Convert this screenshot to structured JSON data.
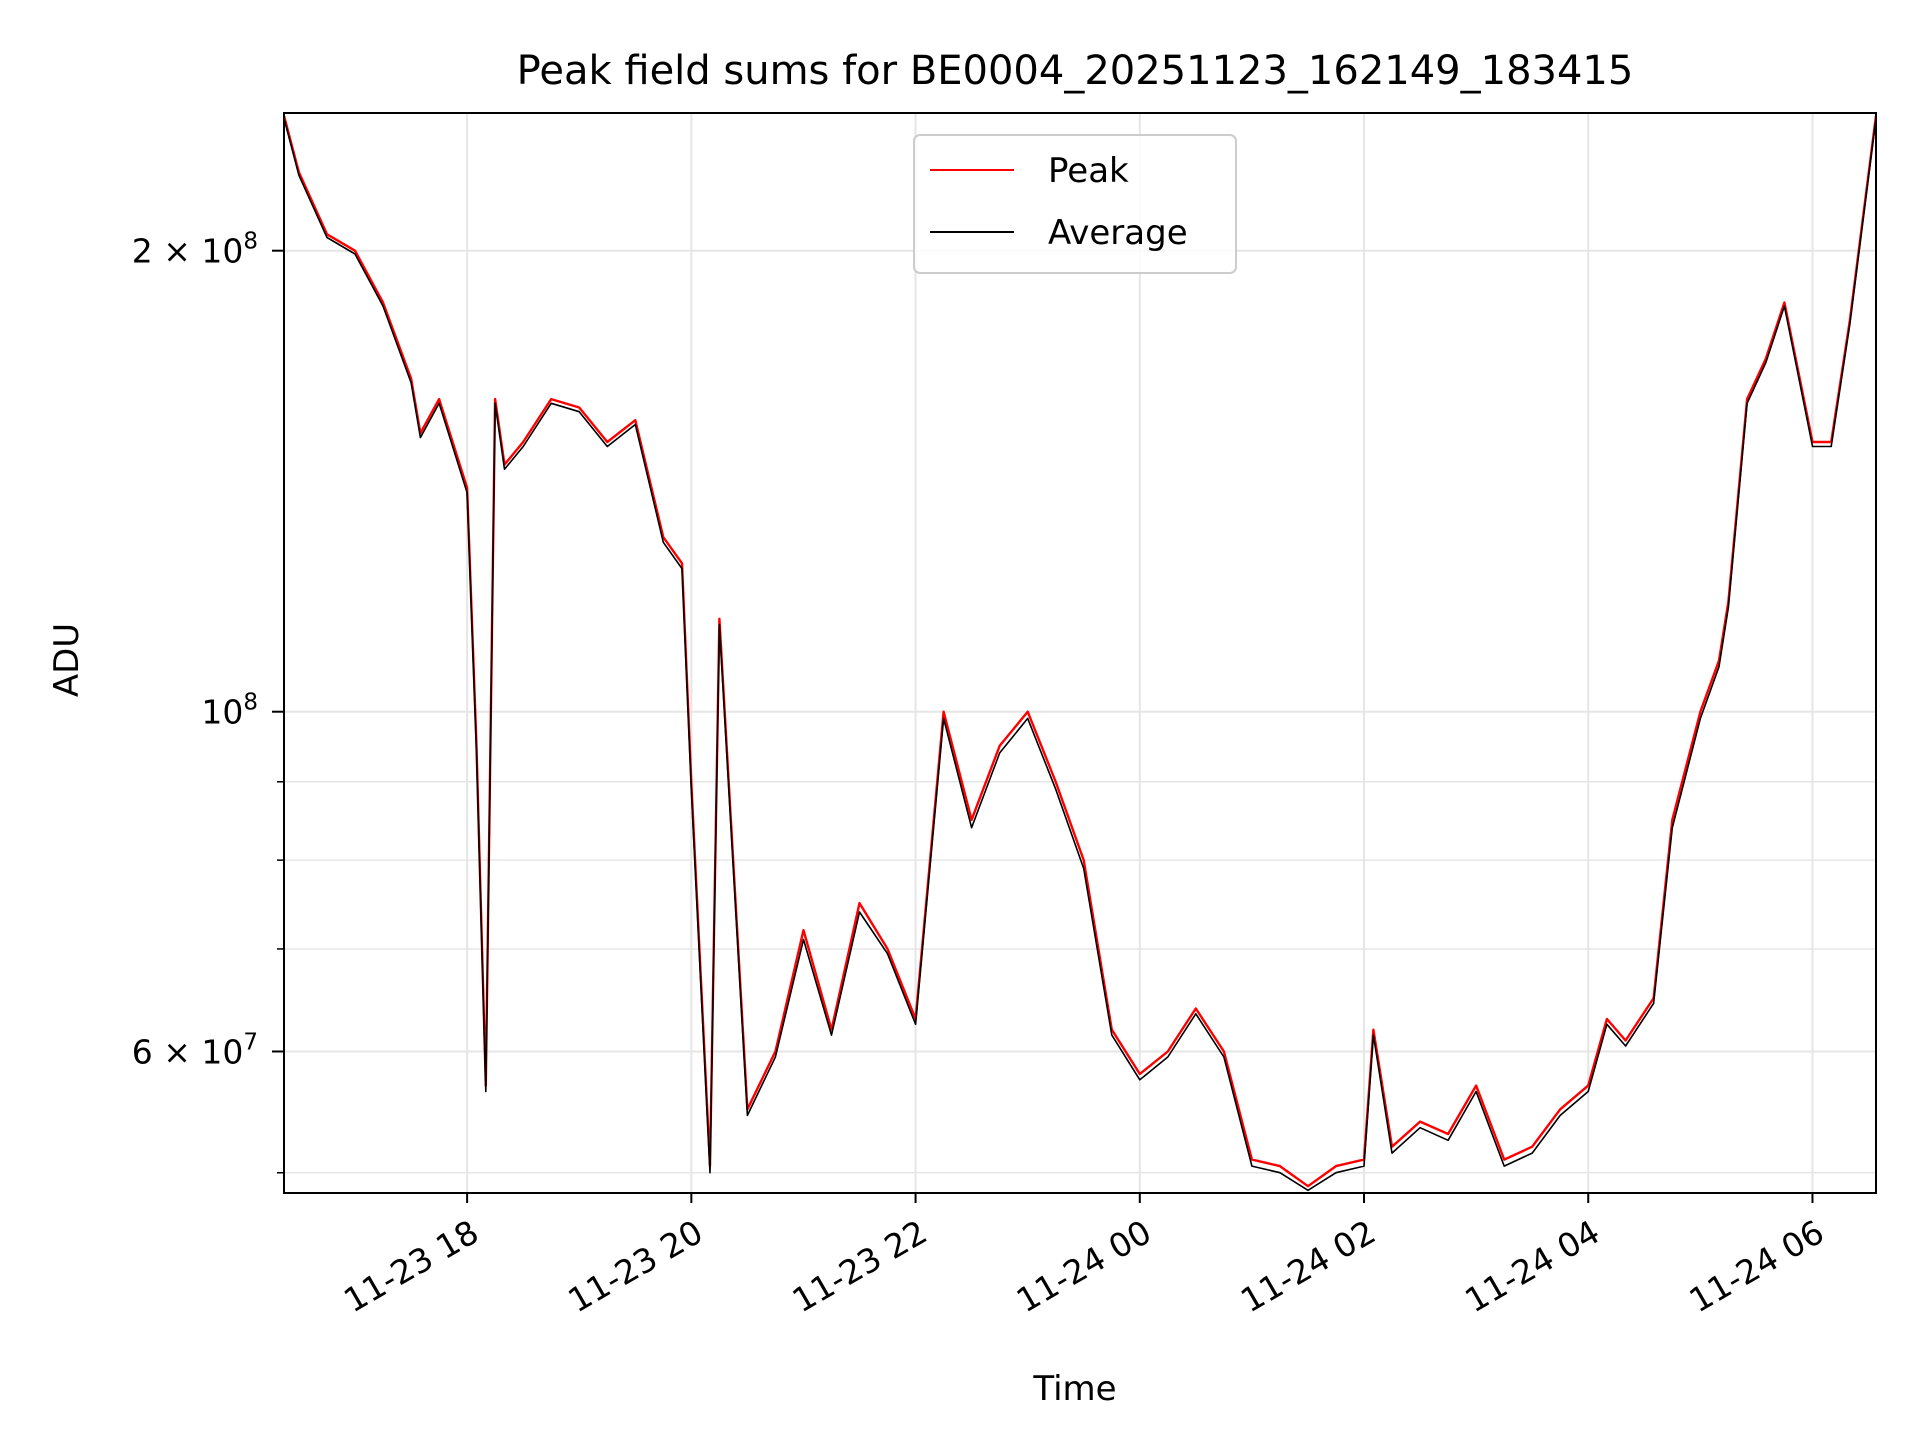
{
  "chart_data": {
    "type": "line",
    "title": "Peak field sums for BE0004_20251123_162149_183415",
    "xlabel": "Time",
    "ylabel": "ADU",
    "yscale": "log",
    "xlim": [
      "2025-11-23 16:22",
      "2025-11-24 06:34"
    ],
    "ylim": [
      48500000,
      246000000
    ],
    "grid": true,
    "legend_position": "top-center",
    "x_ticks": [
      {
        "t": "2025-11-23 18:00",
        "label": "11-23 18"
      },
      {
        "t": "2025-11-23 20:00",
        "label": "11-23 20"
      },
      {
        "t": "2025-11-23 22:00",
        "label": "11-23 22"
      },
      {
        "t": "2025-11-24 00:00",
        "label": "11-24 00"
      },
      {
        "t": "2025-11-24 02:00",
        "label": "11-24 02"
      },
      {
        "t": "2025-11-24 04:00",
        "label": "11-24 04"
      },
      {
        "t": "2025-11-24 06:00",
        "label": "11-24 06"
      }
    ],
    "y_major_ticks": [
      {
        "value": 60000000,
        "mantissa": "6 × 10",
        "exponent": "7"
      },
      {
        "value": 100000000,
        "mantissa": "10",
        "exponent": "8"
      },
      {
        "value": 200000000,
        "mantissa": "2 × 10",
        "exponent": "8"
      }
    ],
    "y_minor_ticks": [
      50000000,
      70000000,
      80000000,
      90000000
    ],
    "series": [
      {
        "name": "Peak",
        "color": "#ff0000",
        "x": [
          "2025-11-23 16:22",
          "2025-11-23 16:30",
          "2025-11-23 16:45",
          "2025-11-23 17:00",
          "2025-11-23 17:15",
          "2025-11-23 17:30",
          "2025-11-23 17:35",
          "2025-11-23 17:45",
          "2025-11-23 18:00",
          "2025-11-23 18:05",
          "2025-11-23 18:10",
          "2025-11-23 18:15",
          "2025-11-23 18:20",
          "2025-11-23 18:30",
          "2025-11-23 18:45",
          "2025-11-23 19:00",
          "2025-11-23 19:15",
          "2025-11-23 19:30",
          "2025-11-23 19:45",
          "2025-11-23 19:55",
          "2025-11-23 20:00",
          "2025-11-23 20:10",
          "2025-11-23 20:15",
          "2025-11-23 20:30",
          "2025-11-23 20:45",
          "2025-11-23 21:00",
          "2025-11-23 21:15",
          "2025-11-23 21:30",
          "2025-11-23 21:45",
          "2025-11-23 22:00",
          "2025-11-23 22:15",
          "2025-11-23 22:30",
          "2025-11-23 22:45",
          "2025-11-23 23:00",
          "2025-11-23 23:15",
          "2025-11-23 23:30",
          "2025-11-23 23:45",
          "2025-11-24 00:00",
          "2025-11-24 00:15",
          "2025-11-24 00:30",
          "2025-11-24 00:45",
          "2025-11-24 01:00",
          "2025-11-24 01:15",
          "2025-11-24 01:30",
          "2025-11-24 01:45",
          "2025-11-24 02:00",
          "2025-11-24 02:05",
          "2025-11-24 02:15",
          "2025-11-24 02:30",
          "2025-11-24 02:45",
          "2025-11-24 03:00",
          "2025-11-24 03:15",
          "2025-11-24 03:30",
          "2025-11-24 03:45",
          "2025-11-24 04:00",
          "2025-11-24 04:10",
          "2025-11-24 04:20",
          "2025-11-24 04:35",
          "2025-11-24 04:45",
          "2025-11-24 05:00",
          "2025-11-24 05:10",
          "2025-11-24 05:15",
          "2025-11-24 05:25",
          "2025-11-24 05:35",
          "2025-11-24 05:45",
          "2025-11-24 06:00",
          "2025-11-24 06:10",
          "2025-11-24 06:20",
          "2025-11-24 06:34"
        ],
        "y": [
          245000000,
          225000000,
          205000000,
          200000000,
          185000000,
          165000000,
          152000000,
          160000000,
          140000000,
          95000000,
          57000000,
          160000000,
          145000000,
          150000000,
          160000000,
          158000000,
          150000000,
          155000000,
          130000000,
          125000000,
          90000000,
          50500000,
          115000000,
          55000000,
          60000000,
          72000000,
          62000000,
          75000000,
          70000000,
          63000000,
          100000000,
          85000000,
          95000000,
          100000000,
          90000000,
          80000000,
          62000000,
          58000000,
          60000000,
          64000000,
          60000000,
          51000000,
          50500000,
          49000000,
          50500000,
          51000000,
          62000000,
          52000000,
          54000000,
          53000000,
          57000000,
          51000000,
          52000000,
          55000000,
          57000000,
          63000000,
          61000000,
          65000000,
          85000000,
          100000000,
          108000000,
          118000000,
          160000000,
          170000000,
          185000000,
          150000000,
          150000000,
          180000000,
          245000000
        ]
      },
      {
        "name": "Average",
        "color": "#000000",
        "x": [
          "2025-11-23 16:22",
          "2025-11-23 16:30",
          "2025-11-23 16:45",
          "2025-11-23 17:00",
          "2025-11-23 17:15",
          "2025-11-23 17:30",
          "2025-11-23 17:35",
          "2025-11-23 17:45",
          "2025-11-23 18:00",
          "2025-11-23 18:05",
          "2025-11-23 18:10",
          "2025-11-23 18:15",
          "2025-11-23 18:20",
          "2025-11-23 18:30",
          "2025-11-23 18:45",
          "2025-11-23 19:00",
          "2025-11-23 19:15",
          "2025-11-23 19:30",
          "2025-11-23 19:45",
          "2025-11-23 19:55",
          "2025-11-23 20:00",
          "2025-11-23 20:10",
          "2025-11-23 20:15",
          "2025-11-23 20:30",
          "2025-11-23 20:45",
          "2025-11-23 21:00",
          "2025-11-23 21:15",
          "2025-11-23 21:30",
          "2025-11-23 21:45",
          "2025-11-23 22:00",
          "2025-11-23 22:15",
          "2025-11-23 22:30",
          "2025-11-23 22:45",
          "2025-11-23 23:00",
          "2025-11-23 23:15",
          "2025-11-23 23:30",
          "2025-11-23 23:45",
          "2025-11-24 00:00",
          "2025-11-24 00:15",
          "2025-11-24 00:30",
          "2025-11-24 00:45",
          "2025-11-24 01:00",
          "2025-11-24 01:15",
          "2025-11-24 01:30",
          "2025-11-24 01:45",
          "2025-11-24 02:00",
          "2025-11-24 02:05",
          "2025-11-24 02:15",
          "2025-11-24 02:30",
          "2025-11-24 02:45",
          "2025-11-24 03:00",
          "2025-11-24 03:15",
          "2025-11-24 03:30",
          "2025-11-24 03:45",
          "2025-11-24 04:00",
          "2025-11-24 04:10",
          "2025-11-24 04:20",
          "2025-11-24 04:35",
          "2025-11-24 04:45",
          "2025-11-24 05:00",
          "2025-11-24 05:10",
          "2025-11-24 05:15",
          "2025-11-24 05:25",
          "2025-11-24 05:35",
          "2025-11-24 05:45",
          "2025-11-24 06:00",
          "2025-11-24 06:10",
          "2025-11-24 06:20",
          "2025-11-24 06:34"
        ],
        "y": [
          244000000,
          224000000,
          204000000,
          199000000,
          184000000,
          164000000,
          151000000,
          159000000,
          139000000,
          94000000,
          56500000,
          159000000,
          144000000,
          149000000,
          159000000,
          157000000,
          149000000,
          154000000,
          129000000,
          124000000,
          89000000,
          50000000,
          114000000,
          54500000,
          59500000,
          71000000,
          61500000,
          74000000,
          69500000,
          62500000,
          99000000,
          84000000,
          94000000,
          99000000,
          89000000,
          79000000,
          61500000,
          57500000,
          59500000,
          63500000,
          59500000,
          50500000,
          50000000,
          48700000,
          50000000,
          50500000,
          61500000,
          51500000,
          53500000,
          52500000,
          56500000,
          50500000,
          51500000,
          54500000,
          56500000,
          62500000,
          60500000,
          64500000,
          84000000,
          99000000,
          107000000,
          117000000,
          159000000,
          169000000,
          184000000,
          149000000,
          149000000,
          179000000,
          244000000
        ]
      }
    ]
  }
}
